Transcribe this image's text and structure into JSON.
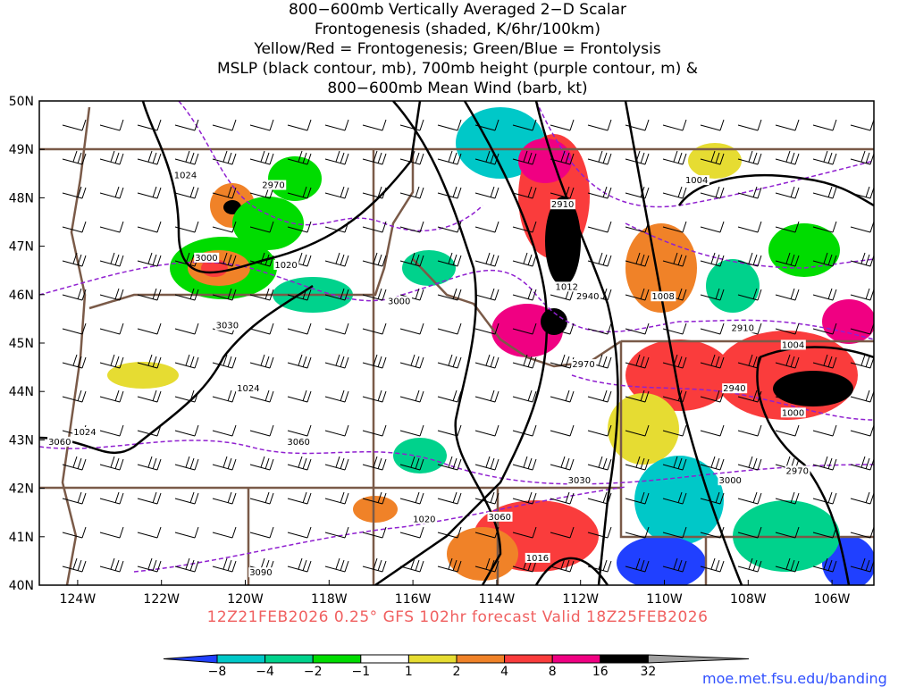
{
  "title_lines": [
    "800−600mb Vertically Averaged 2−D Scalar",
    "Frontogenesis (shaded, K/6hr/100km)",
    "Yellow/Red = Frontogenesis;  Green/Blue = Frontolysis",
    "MSLP (black contour, mb), 700mb height (purple contour, m) &",
    "800−600mb Mean Wind (barb, kt)"
  ],
  "subtitle": "12Z21FEB2026 0.25° GFS 102hr forecast Valid 18Z25FEB2026",
  "lat_labels": [
    "50N",
    "49N",
    "48N",
    "47N",
    "46N",
    "45N",
    "44N",
    "43N",
    "42N",
    "41N",
    "40N"
  ],
  "lon_labels": [
    "124W",
    "122W",
    "120W",
    "118W",
    "116W",
    "114W",
    "112W",
    "110W",
    "108W",
    "106W"
  ],
  "contour_labels": [
    {
      "text": "1024",
      "lon": -121.7,
      "lat": 48.4
    },
    {
      "text": "2970",
      "lon": -119.6,
      "lat": 48.2
    },
    {
      "text": "3000",
      "lon": -121.2,
      "lat": 46.7
    },
    {
      "text": "1020",
      "lon": -119.3,
      "lat": 46.55
    },
    {
      "text": "3030",
      "lon": -120.7,
      "lat": 45.3
    },
    {
      "text": "1024",
      "lon": -120.2,
      "lat": 44.0
    },
    {
      "text": "1024",
      "lon": -124.1,
      "lat": 43.1
    },
    {
      "text": "3060",
      "lon": -124.7,
      "lat": 42.9
    },
    {
      "text": "3060",
      "lon": -119.0,
      "lat": 42.9
    },
    {
      "text": "3000",
      "lon": -116.6,
      "lat": 45.8
    },
    {
      "text": "2910",
      "lon": -112.7,
      "lat": 47.8
    },
    {
      "text": "1012",
      "lon": -112.6,
      "lat": 46.1
    },
    {
      "text": "2940",
      "lon": -112.1,
      "lat": 45.9
    },
    {
      "text": "1008",
      "lon": -110.3,
      "lat": 45.9
    },
    {
      "text": "1004",
      "lon": -109.5,
      "lat": 48.3
    },
    {
      "text": "2970",
      "lon": -112.2,
      "lat": 44.5
    },
    {
      "text": "2910",
      "lon": -108.4,
      "lat": 45.25
    },
    {
      "text": "1004",
      "lon": -107.2,
      "lat": 44.9
    },
    {
      "text": "2940",
      "lon": -108.6,
      "lat": 44.0
    },
    {
      "text": "1000",
      "lon": -107.2,
      "lat": 43.5
    },
    {
      "text": "3000",
      "lon": -108.7,
      "lat": 42.1
    },
    {
      "text": "2970",
      "lon": -107.1,
      "lat": 42.3
    },
    {
      "text": "3030",
      "lon": -112.3,
      "lat": 42.1
    },
    {
      "text": "3060",
      "lon": -114.2,
      "lat": 41.35
    },
    {
      "text": "1020",
      "lon": -116.0,
      "lat": 41.3
    },
    {
      "text": "1016",
      "lon": -113.3,
      "lat": 40.5
    },
    {
      "text": "3090",
      "lon": -119.9,
      "lat": 40.2
    }
  ],
  "colorbar": {
    "ticks": [
      "−8",
      "−4",
      "−2",
      "−1",
      "1",
      "2",
      "4",
      "8",
      "16",
      "32"
    ],
    "colors": [
      "#2040ff",
      "#00c8c8",
      "#00d28c",
      "#00dc00",
      "#ffffff",
      "#e6dc32",
      "#f08228",
      "#fa3c3c",
      "#f00082",
      "#000000",
      "#a0a0a0"
    ]
  },
  "credit": "moe.met.fsu.edu/banding"
}
